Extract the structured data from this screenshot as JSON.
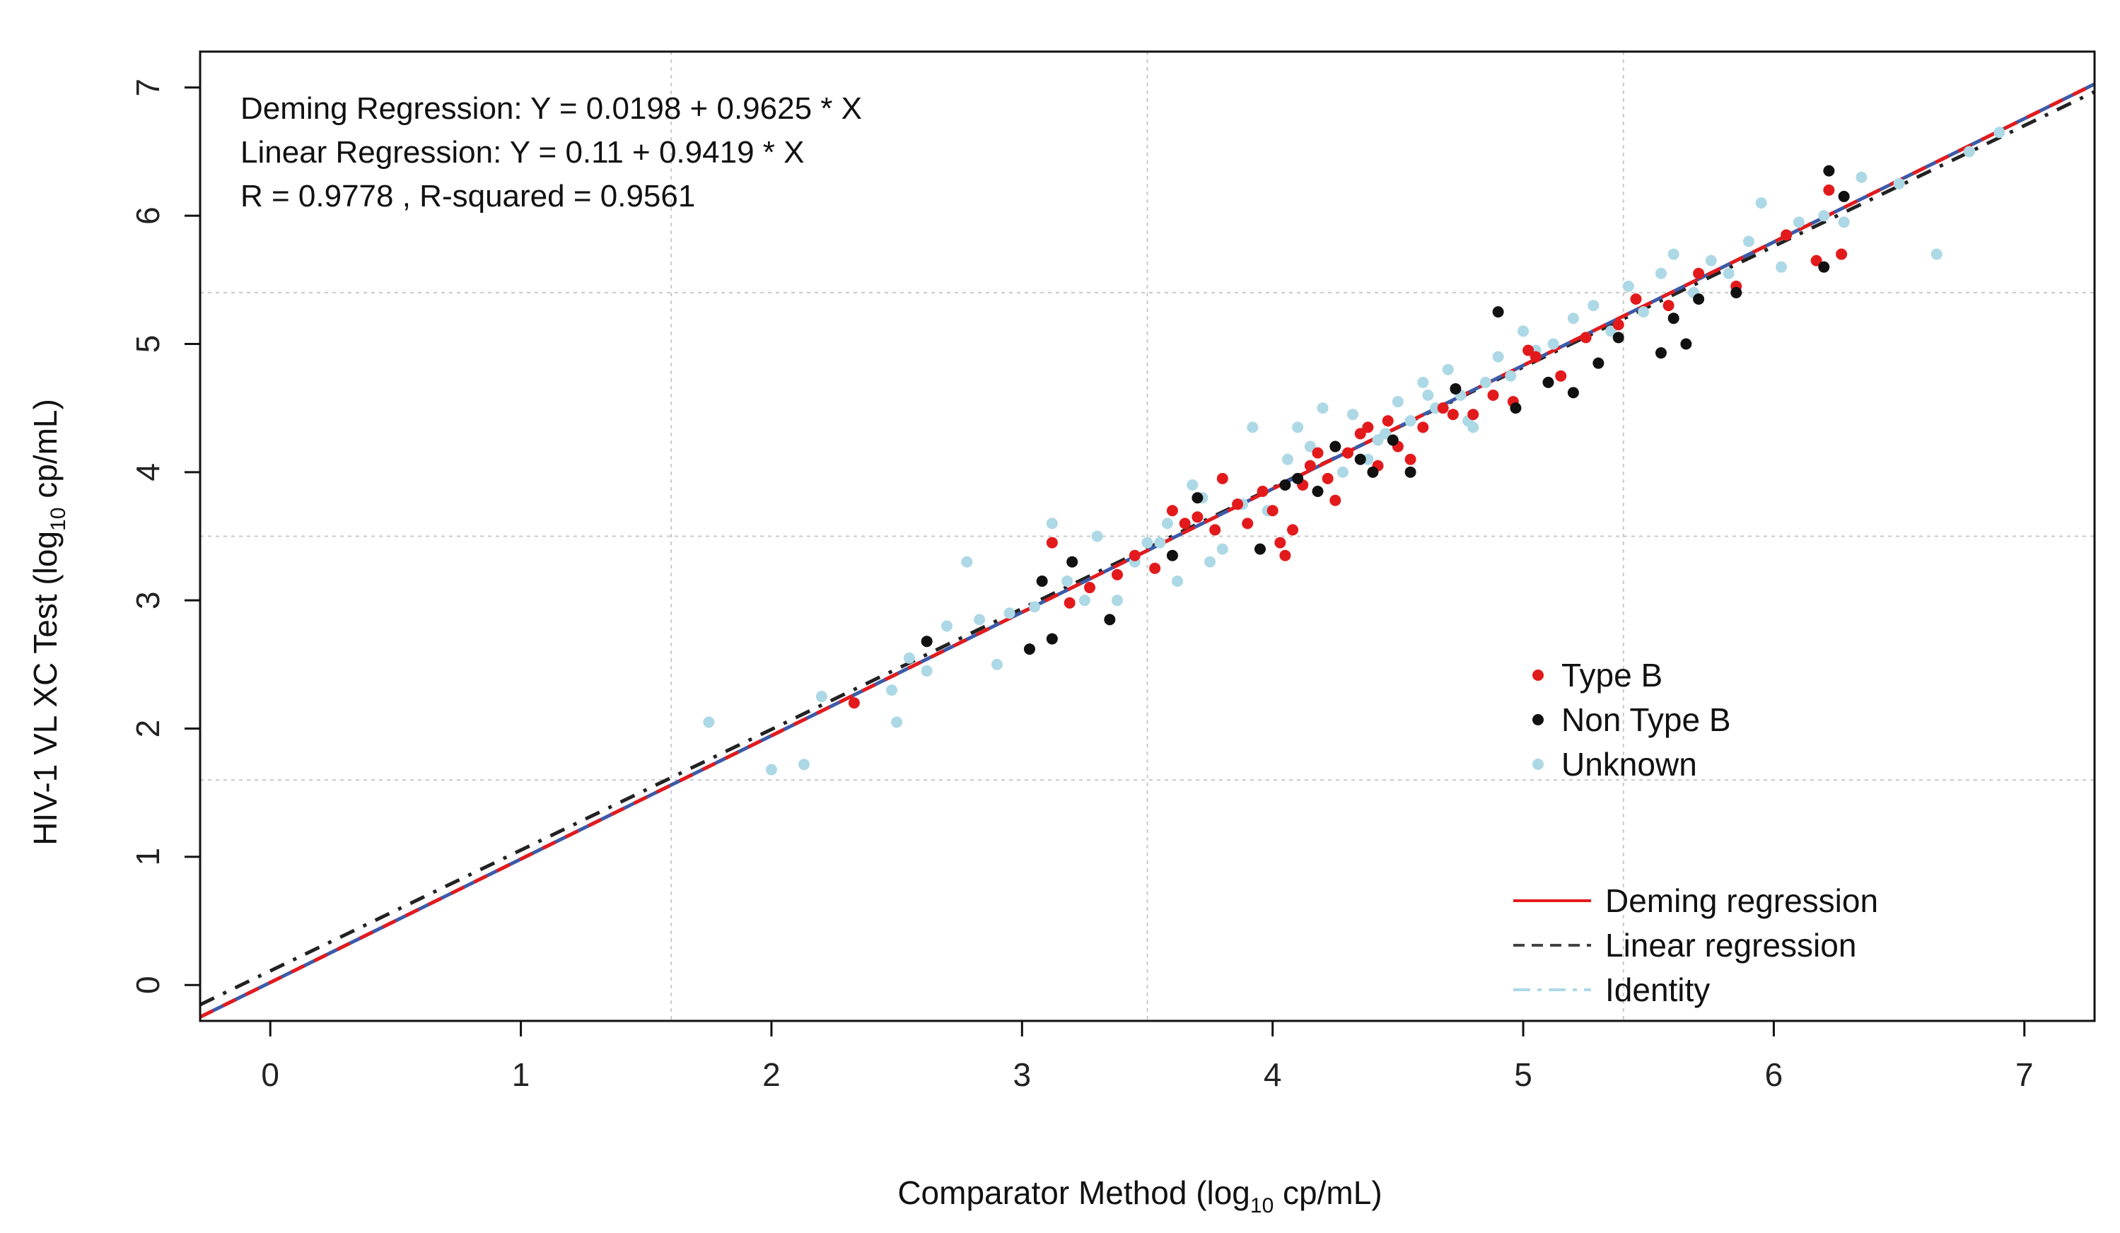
{
  "chart_data": {
    "type": "scatter",
    "xlabel": {
      "pre": "Comparator Method (log",
      "sub": "10",
      "post": " cp/mL)"
    },
    "ylabel": {
      "pre": "HIV-1 VL XC Test (log",
      "sub": "10",
      "post": " cp/mL)"
    },
    "xlim": [
      -0.28,
      7.28
    ],
    "ylim": [
      -0.28,
      7.28
    ],
    "x_ticks": [
      0,
      1,
      2,
      3,
      4,
      5,
      6,
      7
    ],
    "y_ticks": [
      0,
      1,
      2,
      3,
      4,
      5,
      6,
      7
    ],
    "x_tick_labels": [
      "0",
      "1",
      "2",
      "3",
      "4",
      "5",
      "6",
      "7"
    ],
    "y_tick_labels": [
      "0",
      "1",
      "2",
      "3",
      "4",
      "5",
      "6",
      "7"
    ],
    "grid_x": [
      1.6,
      3.5,
      5.4
    ],
    "grid_y": [
      1.6,
      3.5,
      5.4
    ],
    "annotations": [
      "Deming Regression: Y = 0.0198 + 0.9625 * X",
      "Linear Regression: Y = 0.11 + 0.9419 * X",
      "R = 0.9778 , R-squared = 0.9561"
    ],
    "lines": [
      {
        "name": "Deming regression",
        "intercept": 0.0198,
        "slope": 0.9625,
        "color": "#e31a1c",
        "dash": "dashed"
      },
      {
        "name": "Linear regression",
        "intercept": 0.11,
        "slope": 0.9419,
        "color": "#222222",
        "dash": "dashed"
      },
      {
        "name": "Identity",
        "intercept": 0.0,
        "slope": 1.0,
        "color": "#add8e6",
        "dash": "dotdash"
      }
    ],
    "fit_line_color": "#3d5aa8",
    "series": [
      {
        "name": "Type B",
        "color": "#e31a1c",
        "points": [
          [
            2.33,
            2.2
          ],
          [
            3.12,
            3.45
          ],
          [
            3.19,
            2.98
          ],
          [
            3.27,
            3.1
          ],
          [
            3.38,
            3.2
          ],
          [
            3.45,
            3.35
          ],
          [
            3.53,
            3.25
          ],
          [
            3.6,
            3.7
          ],
          [
            3.65,
            3.6
          ],
          [
            3.7,
            3.65
          ],
          [
            3.77,
            3.55
          ],
          [
            3.8,
            3.95
          ],
          [
            3.86,
            3.75
          ],
          [
            3.9,
            3.6
          ],
          [
            3.96,
            3.85
          ],
          [
            4.0,
            3.7
          ],
          [
            4.03,
            3.45
          ],
          [
            4.05,
            3.35
          ],
          [
            4.08,
            3.55
          ],
          [
            4.12,
            3.9
          ],
          [
            4.15,
            4.05
          ],
          [
            4.22,
            3.95
          ],
          [
            4.25,
            3.78
          ],
          [
            4.3,
            4.15
          ],
          [
            4.35,
            4.3
          ],
          [
            4.42,
            4.05
          ],
          [
            4.46,
            4.4
          ],
          [
            4.5,
            4.2
          ],
          [
            4.55,
            4.1
          ],
          [
            4.6,
            4.35
          ],
          [
            4.68,
            4.5
          ],
          [
            4.72,
            4.45
          ],
          [
            4.8,
            4.45
          ],
          [
            4.88,
            4.6
          ],
          [
            4.96,
            4.55
          ],
          [
            5.05,
            4.9
          ],
          [
            5.15,
            4.75
          ],
          [
            5.25,
            5.05
          ],
          [
            5.38,
            5.15
          ],
          [
            5.45,
            5.35
          ],
          [
            5.58,
            5.3
          ],
          [
            5.7,
            5.55
          ],
          [
            5.85,
            5.45
          ],
          [
            6.05,
            5.85
          ],
          [
            6.17,
            5.65
          ],
          [
            6.22,
            6.2
          ],
          [
            6.27,
            5.7
          ],
          [
            4.18,
            4.15
          ],
          [
            4.38,
            4.35
          ],
          [
            5.02,
            4.95
          ]
        ]
      },
      {
        "name": "Non Type B",
        "color": "#111111",
        "points": [
          [
            2.62,
            2.68
          ],
          [
            3.03,
            2.62
          ],
          [
            3.08,
            3.15
          ],
          [
            3.12,
            2.7
          ],
          [
            3.2,
            3.3
          ],
          [
            3.35,
            2.85
          ],
          [
            3.6,
            3.35
          ],
          [
            3.95,
            3.4
          ],
          [
            4.05,
            3.9
          ],
          [
            4.18,
            3.85
          ],
          [
            4.25,
            4.2
          ],
          [
            4.35,
            4.1
          ],
          [
            4.4,
            4.0
          ],
          [
            4.55,
            4.0
          ],
          [
            4.73,
            4.65
          ],
          [
            4.9,
            5.25
          ],
          [
            4.97,
            4.5
          ],
          [
            5.1,
            4.7
          ],
          [
            5.2,
            4.62
          ],
          [
            5.3,
            4.85
          ],
          [
            5.38,
            5.05
          ],
          [
            5.55,
            4.93
          ],
          [
            5.6,
            5.2
          ],
          [
            5.65,
            5.0
          ],
          [
            5.7,
            5.35
          ],
          [
            5.85,
            5.4
          ],
          [
            6.2,
            5.6
          ],
          [
            6.22,
            6.35
          ],
          [
            6.28,
            6.15
          ],
          [
            4.1,
            3.95
          ],
          [
            3.7,
            3.8
          ],
          [
            4.48,
            4.25
          ]
        ]
      },
      {
        "name": "Unknown",
        "color": "#add8e6",
        "points": [
          [
            1.75,
            2.05
          ],
          [
            2.0,
            1.68
          ],
          [
            2.13,
            1.72
          ],
          [
            2.2,
            2.25
          ],
          [
            2.48,
            2.3
          ],
          [
            2.5,
            2.05
          ],
          [
            2.55,
            2.55
          ],
          [
            2.62,
            2.45
          ],
          [
            2.7,
            2.8
          ],
          [
            2.78,
            3.3
          ],
          [
            2.83,
            2.85
          ],
          [
            2.9,
            2.5
          ],
          [
            2.95,
            2.9
          ],
          [
            3.05,
            2.95
          ],
          [
            3.12,
            3.6
          ],
          [
            3.18,
            3.15
          ],
          [
            3.25,
            3.0
          ],
          [
            3.3,
            3.5
          ],
          [
            3.38,
            3.0
          ],
          [
            3.45,
            3.3
          ],
          [
            3.5,
            3.45
          ],
          [
            3.58,
            3.6
          ],
          [
            3.62,
            3.15
          ],
          [
            3.68,
            3.9
          ],
          [
            3.72,
            3.8
          ],
          [
            3.75,
            3.3
          ],
          [
            3.8,
            3.4
          ],
          [
            3.88,
            3.75
          ],
          [
            3.92,
            4.35
          ],
          [
            3.98,
            3.7
          ],
          [
            4.06,
            4.1
          ],
          [
            4.1,
            4.35
          ],
          [
            4.15,
            4.2
          ],
          [
            4.2,
            4.5
          ],
          [
            4.28,
            4.0
          ],
          [
            4.32,
            4.45
          ],
          [
            4.38,
            4.1
          ],
          [
            4.45,
            4.3
          ],
          [
            4.5,
            4.55
          ],
          [
            4.55,
            4.4
          ],
          [
            4.6,
            4.7
          ],
          [
            4.65,
            4.5
          ],
          [
            4.7,
            4.8
          ],
          [
            4.75,
            4.6
          ],
          [
            4.8,
            4.35
          ],
          [
            4.85,
            4.7
          ],
          [
            4.9,
            4.9
          ],
          [
            4.95,
            4.75
          ],
          [
            5.0,
            5.1
          ],
          [
            5.05,
            4.95
          ],
          [
            5.12,
            5.0
          ],
          [
            5.2,
            5.2
          ],
          [
            5.28,
            5.3
          ],
          [
            5.35,
            5.1
          ],
          [
            5.42,
            5.45
          ],
          [
            5.48,
            5.25
          ],
          [
            5.55,
            5.55
          ],
          [
            5.6,
            5.7
          ],
          [
            5.68,
            5.4
          ],
          [
            5.75,
            5.65
          ],
          [
            5.82,
            5.55
          ],
          [
            5.9,
            5.8
          ],
          [
            5.95,
            6.1
          ],
          [
            6.03,
            5.6
          ],
          [
            6.1,
            5.95
          ],
          [
            6.2,
            6.0
          ],
          [
            6.28,
            5.95
          ],
          [
            6.35,
            6.3
          ],
          [
            6.5,
            6.25
          ],
          [
            6.65,
            5.7
          ],
          [
            6.78,
            6.5
          ],
          [
            6.9,
            6.65
          ],
          [
            4.42,
            4.25
          ],
          [
            4.62,
            4.6
          ],
          [
            4.78,
            4.4
          ],
          [
            3.55,
            3.45
          ]
        ]
      }
    ]
  },
  "legend_points": [
    {
      "label": "Type B",
      "color": "#e31a1c"
    },
    {
      "label": "Non Type B",
      "color": "#111111"
    },
    {
      "label": "Unknown",
      "color": "#add8e6"
    }
  ],
  "legend_lines": [
    {
      "label": "Deming regression",
      "color": "#e31a1c",
      "dash": "solid"
    },
    {
      "label": "Linear regression",
      "color": "#444444",
      "dash": "dashed"
    },
    {
      "label": "Identity",
      "color": "#add8e6",
      "dash": "dotdash"
    }
  ]
}
